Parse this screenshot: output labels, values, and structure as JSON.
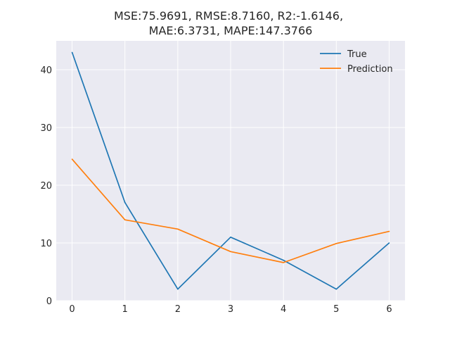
{
  "chart_data": {
    "type": "line",
    "title_lines": [
      "MSE:75.9691, RMSE:8.7160, R2:-1.6146,",
      "MAE:6.3731, MAPE:147.3766"
    ],
    "xlabel": "",
    "ylabel": "",
    "x": [
      0,
      1,
      2,
      3,
      4,
      5,
      6
    ],
    "xlim": [
      -0.3,
      6.3
    ],
    "ylim": [
      0,
      45
    ],
    "xticks": [
      0,
      1,
      2,
      3,
      4,
      5,
      6
    ],
    "yticks": [
      0,
      10,
      20,
      30,
      40
    ],
    "grid": true,
    "legend_position": "top-right",
    "series": [
      {
        "name": "True",
        "color": "#1f77b4",
        "values": [
          43,
          17,
          2,
          11,
          7,
          2,
          10
        ]
      },
      {
        "name": "Prediction",
        "color": "#ff7f0e",
        "values": [
          24.5,
          14,
          12.4,
          8.5,
          6.6,
          9.9,
          12
        ]
      }
    ]
  }
}
